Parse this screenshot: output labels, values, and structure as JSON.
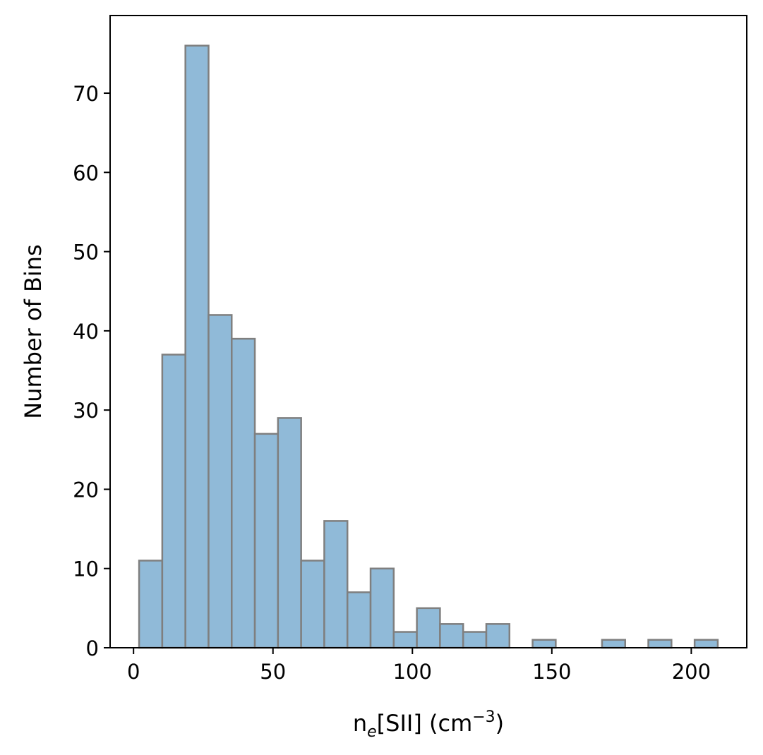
{
  "chart_data": {
    "type": "bar",
    "subtype": "histogram",
    "bin_edges": [
      2.0,
      10.3,
      18.6,
      26.9,
      35.2,
      43.5,
      51.8,
      60.1,
      68.4,
      76.7,
      85.0,
      93.3,
      101.6,
      109.9,
      118.2,
      126.5,
      134.8,
      143.1,
      151.4,
      159.7,
      168.0,
      176.3,
      184.6,
      192.9,
      201.2,
      209.5
    ],
    "values": [
      11,
      37,
      76,
      42,
      39,
      27,
      29,
      11,
      16,
      7,
      10,
      2,
      5,
      3,
      2,
      3,
      0,
      1,
      0,
      0,
      1,
      0,
      1,
      0,
      1
    ],
    "title": "",
    "xlabel": {
      "base": "n",
      "sub": "e",
      "mid": "[SII] (cm",
      "sup": "−3",
      "end": ")"
    },
    "ylabel": "Number of Bins",
    "xlim": [
      -8.4,
      219.9
    ],
    "ylim": [
      0,
      79.8
    ],
    "xticks": [
      0,
      50,
      100,
      150,
      200
    ],
    "xtick_labels": [
      "0",
      "50",
      "100",
      "150",
      "200"
    ],
    "yticks": [
      0,
      10,
      20,
      30,
      40,
      50,
      60,
      70
    ],
    "ytick_labels": [
      "0",
      "10",
      "20",
      "30",
      "40",
      "50",
      "60",
      "70"
    ],
    "grid": false,
    "legend": "none",
    "colors": {
      "bar_fill": "#90bad8",
      "bar_edge": "#7f7f7f",
      "axis": "#000000"
    }
  }
}
